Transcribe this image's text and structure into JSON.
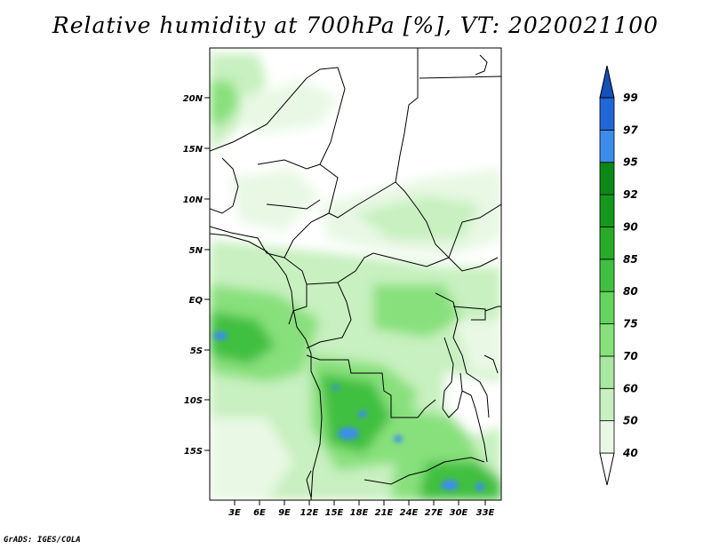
{
  "title": "Relative humidity at 700hPa [%], VT: 2020021100",
  "credit": "GrADS: IGES/COLA",
  "map": {
    "lat_labels": [
      "20N",
      "15N",
      "10N",
      "5N",
      "EQ",
      "5S",
      "10S",
      "15S"
    ],
    "lon_labels": [
      "3E",
      "6E",
      "9E",
      "12E",
      "15E",
      "18E",
      "21E",
      "24E",
      "27E",
      "30E",
      "33E"
    ]
  },
  "colorbar": {
    "levels": [
      "40",
      "50",
      "60",
      "70",
      "75",
      "80",
      "85",
      "90",
      "92",
      "95",
      "97",
      "99"
    ],
    "colors": [
      "#ffffff",
      "#e8f8e4",
      "#c8f0c0",
      "#a8e8a0",
      "#88e07c",
      "#64d45c",
      "#40c040",
      "#28ac28",
      "#14981c",
      "#0c8818",
      "#3c8cec",
      "#2068d8",
      "#1450b8"
    ]
  }
}
